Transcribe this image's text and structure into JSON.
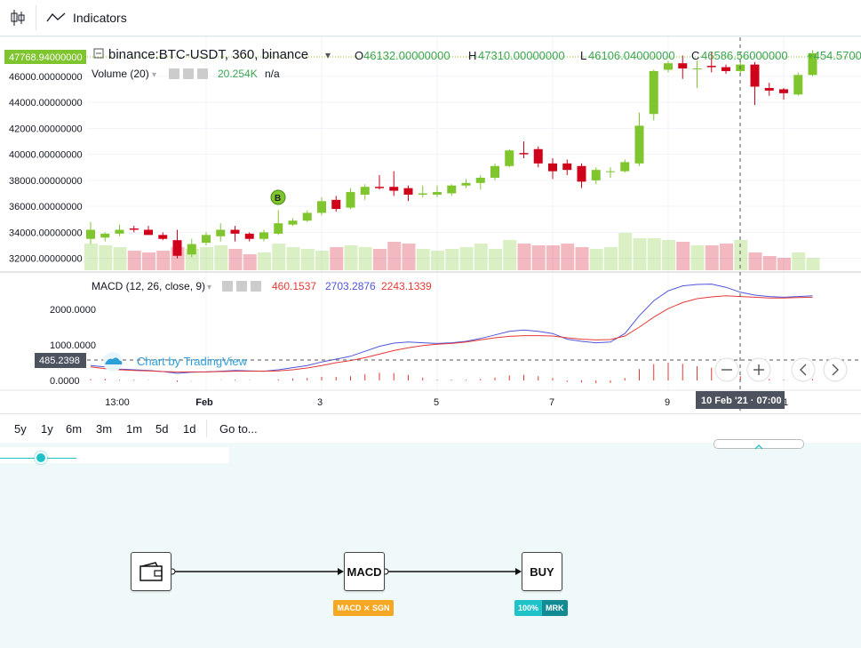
{
  "toolbar": {
    "indicators_label": "Indicators"
  },
  "legend": {
    "symbol": "binance:BTC-USDT, 360, binance",
    "o_label": "O",
    "o_value": "46132.00000000",
    "h_label": "H",
    "h_value": "47310.00000000",
    "l_label": "L",
    "l_value": "46106.04000000",
    "c_label": "C",
    "c_value": "46586.56000000",
    "change": "+454.5700",
    "volume_label": "Volume (20)",
    "volume_value": "20.254K",
    "volume_na": "n/a",
    "macd_label": "MACD (12, 26, close, 9)",
    "macd_hist": "460.1537",
    "macd_line": "2703.2876",
    "macd_signal": "2243.1339"
  },
  "price_axis": {
    "current_price": "47768.94000000",
    "ticks": [
      "46000.00000000",
      "44000.00000000",
      "42000.00000000",
      "40000.00000000",
      "38000.00000000",
      "36000.00000000",
      "34000.00000000",
      "32000.00000000"
    ]
  },
  "macd_axis": {
    "ticks": [
      "2000.0000",
      "1000.0000",
      "0.0000"
    ],
    "crosshair_value": "485.2398"
  },
  "time_axis": {
    "ticks": [
      "13:00",
      "Feb",
      "3",
      "5",
      "7",
      "9",
      "1"
    ],
    "crosshair_label": "10 Feb '21 · 07:00"
  },
  "watermark": "Chart by TradingView",
  "marker": "B",
  "ranges": [
    "5y",
    "1y",
    "6m",
    "3m",
    "1m",
    "5d",
    "1d"
  ],
  "goto_label": "Go to...",
  "flow": {
    "node_macd": "MACD",
    "node_buy": "BUY",
    "macd_tag": "MACD ⨯ SGN",
    "buy_tag_pct": "100%",
    "buy_tag_type": "MRK"
  },
  "colors": {
    "up": "#7fc52d",
    "down": "#d0021b",
    "macd": "#4e56d8",
    "signal": "#e53935",
    "accent": "#1fc2c8"
  },
  "chart_data": {
    "type": "candlestick",
    "candles": [
      {
        "o": 33500,
        "h": 34800,
        "l": 33100,
        "c": 34200
      },
      {
        "o": 33600,
        "h": 34000,
        "l": 33300,
        "c": 33900
      },
      {
        "o": 33900,
        "h": 34600,
        "l": 33700,
        "c": 34200
      },
      {
        "o": 34300,
        "h": 34500,
        "l": 34000,
        "c": 34200
      },
      {
        "o": 34200,
        "h": 34500,
        "l": 33900,
        "c": 33800
      },
      {
        "o": 33800,
        "h": 34000,
        "l": 33400,
        "c": 33500
      },
      {
        "o": 33400,
        "h": 34200,
        "l": 32000,
        "c": 32200
      },
      {
        "o": 32300,
        "h": 33500,
        "l": 32100,
        "c": 33100
      },
      {
        "o": 33200,
        "h": 34000,
        "l": 33000,
        "c": 33800
      },
      {
        "o": 33700,
        "h": 34700,
        "l": 33300,
        "c": 34200
      },
      {
        "o": 34200,
        "h": 34500,
        "l": 33300,
        "c": 33900
      },
      {
        "o": 33900,
        "h": 34000,
        "l": 33300,
        "c": 33500
      },
      {
        "o": 33500,
        "h": 34200,
        "l": 33300,
        "c": 34000
      },
      {
        "o": 33900,
        "h": 35700,
        "l": 33800,
        "c": 34700
      },
      {
        "o": 34600,
        "h": 35100,
        "l": 34500,
        "c": 34900
      },
      {
        "o": 34900,
        "h": 35700,
        "l": 34800,
        "c": 35500
      },
      {
        "o": 35500,
        "h": 36700,
        "l": 35300,
        "c": 36400
      },
      {
        "o": 36500,
        "h": 36800,
        "l": 35600,
        "c": 35800
      },
      {
        "o": 35900,
        "h": 37400,
        "l": 35800,
        "c": 37100
      },
      {
        "o": 36900,
        "h": 37700,
        "l": 36500,
        "c": 37500
      },
      {
        "o": 37500,
        "h": 38400,
        "l": 37300,
        "c": 37400
      },
      {
        "o": 37500,
        "h": 38700,
        "l": 36800,
        "c": 37200
      },
      {
        "o": 37400,
        "h": 37600,
        "l": 36400,
        "c": 36900
      },
      {
        "o": 36900,
        "h": 37600,
        "l": 36700,
        "c": 37000
      },
      {
        "o": 36900,
        "h": 37600,
        "l": 36700,
        "c": 37100
      },
      {
        "o": 37000,
        "h": 37700,
        "l": 36800,
        "c": 37600
      },
      {
        "o": 37600,
        "h": 38100,
        "l": 37400,
        "c": 37800
      },
      {
        "o": 37800,
        "h": 38400,
        "l": 37300,
        "c": 38200
      },
      {
        "o": 38200,
        "h": 39300,
        "l": 38000,
        "c": 39100
      },
      {
        "o": 39100,
        "h": 40400,
        "l": 39000,
        "c": 40300
      },
      {
        "o": 40100,
        "h": 41000,
        "l": 39700,
        "c": 40000
      },
      {
        "o": 40400,
        "h": 40600,
        "l": 39000,
        "c": 39300
      },
      {
        "o": 39300,
        "h": 39700,
        "l": 38100,
        "c": 38700
      },
      {
        "o": 39300,
        "h": 39600,
        "l": 38400,
        "c": 38800
      },
      {
        "o": 39100,
        "h": 39300,
        "l": 37400,
        "c": 37900
      },
      {
        "o": 38000,
        "h": 39000,
        "l": 37700,
        "c": 38800
      },
      {
        "o": 38700,
        "h": 39000,
        "l": 38200,
        "c": 38700
      },
      {
        "o": 38700,
        "h": 39600,
        "l": 38600,
        "c": 39400
      },
      {
        "o": 39300,
        "h": 43200,
        "l": 39100,
        "c": 42200
      },
      {
        "o": 43100,
        "h": 46500,
        "l": 42600,
        "c": 46400
      },
      {
        "o": 46500,
        "h": 47200,
        "l": 46300,
        "c": 47000
      },
      {
        "o": 47000,
        "h": 47600,
        "l": 45800,
        "c": 46600
      },
      {
        "o": 46600,
        "h": 47200,
        "l": 45100,
        "c": 46600
      },
      {
        "o": 46800,
        "h": 47900,
        "l": 46300,
        "c": 46700
      },
      {
        "o": 46700,
        "h": 46900,
        "l": 46200,
        "c": 46400
      },
      {
        "o": 46400,
        "h": 47200,
        "l": 46100,
        "c": 46900
      },
      {
        "o": 46900,
        "h": 47100,
        "l": 43800,
        "c": 45200
      },
      {
        "o": 45100,
        "h": 45500,
        "l": 44500,
        "c": 44900
      },
      {
        "o": 45000,
        "h": 45100,
        "l": 44200,
        "c": 44700
      },
      {
        "o": 44600,
        "h": 46300,
        "l": 44500,
        "c": 46100
      },
      {
        "o": 46100,
        "h": 48000,
        "l": 46000,
        "c": 47770
      }
    ],
    "volume": [
      30,
      28,
      26,
      22,
      20,
      22,
      26,
      24,
      26,
      28,
      24,
      18,
      20,
      30,
      26,
      24,
      22,
      26,
      28,
      26,
      24,
      32,
      30,
      24,
      22,
      24,
      26,
      30,
      24,
      34,
      30,
      28,
      28,
      30,
      26,
      24,
      26,
      42,
      36,
      36,
      34,
      32,
      28,
      28,
      30,
      34,
      20,
      16,
      14,
      20,
      14
    ],
    "macd": [
      420,
      380,
      320,
      300,
      280,
      250,
      200,
      230,
      240,
      260,
      280,
      270,
      260,
      300,
      360,
      420,
      520,
      600,
      680,
      820,
      960,
      1050,
      1080,
      1060,
      1040,
      1060,
      1100,
      1180,
      1280,
      1380,
      1420,
      1380,
      1320,
      1160,
      1100,
      1060,
      1080,
      1320,
      1820,
      2240,
      2520,
      2660,
      2700,
      2710,
      2620,
      2480,
      2400,
      2360,
      2340,
      2360,
      2380
    ],
    "signal": [
      380,
      330,
      300,
      280,
      270,
      250,
      240,
      240,
      240,
      250,
      260,
      260,
      260,
      270,
      300,
      350,
      420,
      500,
      560,
      640,
      740,
      840,
      920,
      980,
      1020,
      1040,
      1080,
      1140,
      1200,
      1240,
      1260,
      1260,
      1250,
      1200,
      1160,
      1140,
      1150,
      1250,
      1500,
      1780,
      2020,
      2190,
      2300,
      2350,
      2380,
      2360,
      2340,
      2320,
      2320,
      2330,
      2340
    ],
    "price_ylim": [
      31500,
      47900
    ],
    "macd_ylim": [
      -50,
      2700
    ]
  }
}
